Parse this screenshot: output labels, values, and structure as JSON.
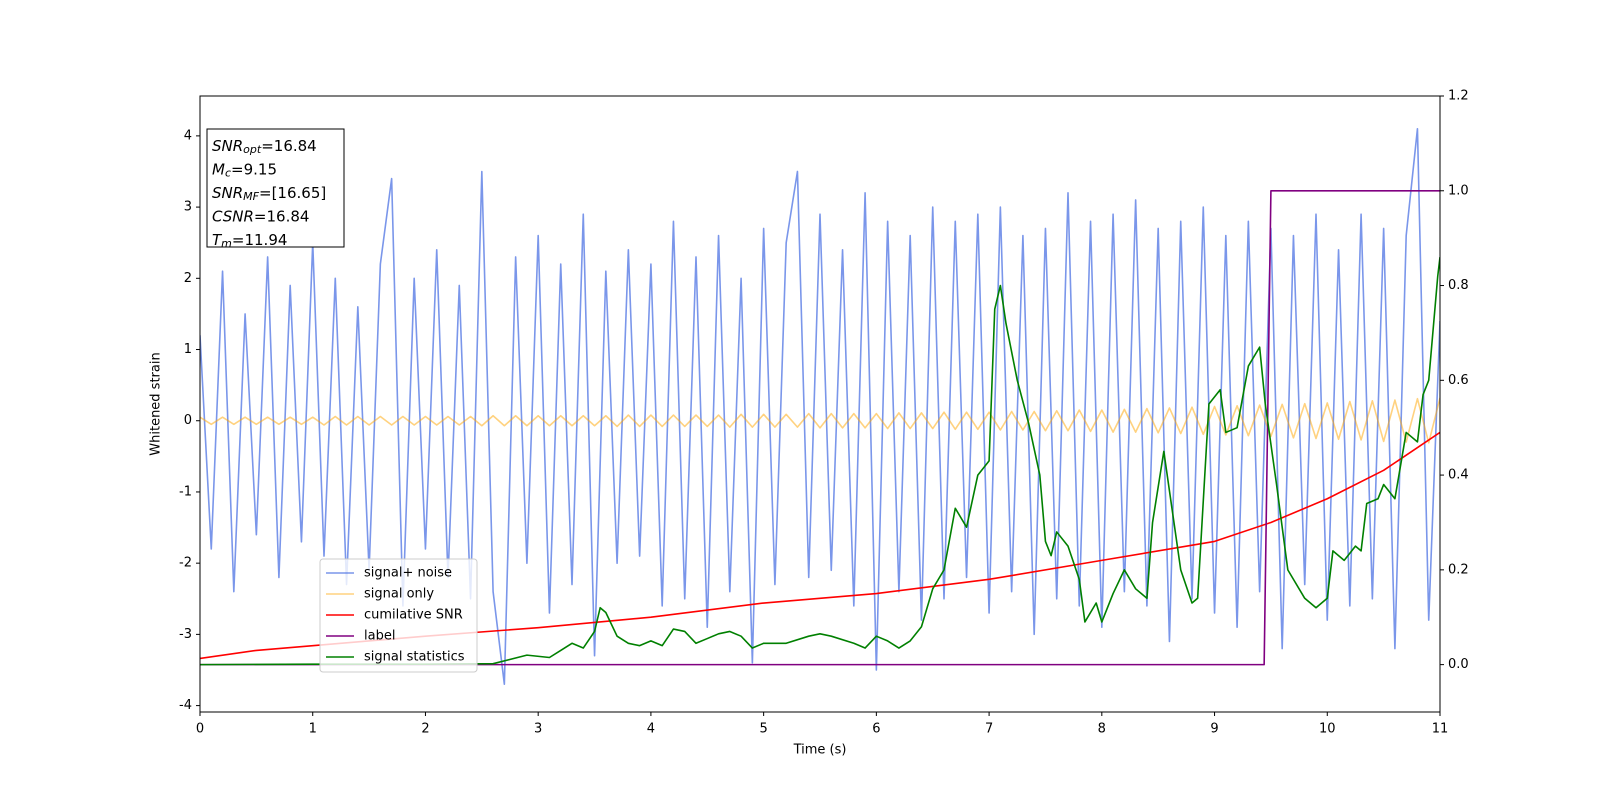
{
  "chart_data": {
    "type": "line",
    "xlabel": "Time (s)",
    "ylabel": "Whitened strain",
    "xlim": [
      0,
      11
    ],
    "xticks": [
      0,
      1,
      2,
      3,
      4,
      5,
      6,
      7,
      8,
      9,
      10,
      11
    ],
    "ylim": [
      -4.09,
      4.56
    ],
    "yticks": [
      -4,
      -3,
      -2,
      -1,
      0,
      1,
      2,
      3,
      4
    ],
    "y2lim": [
      -0.1,
      1.2
    ],
    "y2ticks": [
      {
        "value": 0,
        "label": "0.0"
      },
      0.2,
      0.4,
      0.6,
      0.8,
      {
        "value": 1,
        "label": "1.0"
      },
      1.2
    ],
    "legend": "lower left",
    "annotations": [
      {
        "main": "SNR",
        "sub": "opt",
        "rest": "=16.84"
      },
      {
        "main": "M",
        "sub": "c",
        "rest": "=9.15"
      },
      {
        "main": "SNR",
        "sub": "MF",
        "rest": "=[16.65]"
      },
      {
        "main": "CSNR",
        "rest": "=16.84"
      },
      {
        "main": "T",
        "sub": "m",
        "rest": "=11.94"
      }
    ],
    "x": [
      0,
      0.1,
      0.2,
      0.3,
      0.4,
      0.5,
      0.6,
      0.7,
      0.8,
      0.9,
      1,
      1.1,
      1.2,
      1.3,
      1.4,
      1.5,
      1.6,
      1.7,
      1.8,
      1.9,
      2,
      2.1,
      2.2,
      2.3,
      2.4,
      2.5,
      2.6,
      2.7,
      2.8,
      2.9,
      3,
      3.1,
      3.2,
      3.3,
      3.4,
      3.5,
      3.6,
      3.7,
      3.8,
      3.9,
      4,
      4.1,
      4.2,
      4.3,
      4.4,
      4.5,
      4.6,
      4.7,
      4.8,
      4.9,
      5,
      5.1,
      5.2,
      5.3,
      5.4,
      5.5,
      5.6,
      5.7,
      5.8,
      5.9,
      6,
      6.1,
      6.2,
      6.3,
      6.4,
      6.5,
      6.6,
      6.7,
      6.8,
      6.9,
      7,
      7.1,
      7.2,
      7.3,
      7.4,
      7.5,
      7.6,
      7.7,
      7.8,
      7.9,
      8,
      8.1,
      8.2,
      8.3,
      8.4,
      8.5,
      8.6,
      8.7,
      8.8,
      8.9,
      9,
      9.1,
      9.2,
      9.3,
      9.4,
      9.5,
      9.6,
      9.7,
      9.8,
      9.9,
      10,
      10.1,
      10.2,
      10.3,
      10.4,
      10.5,
      10.6,
      10.7,
      10.8,
      10.9,
      11
    ],
    "series": [
      {
        "name": "signal+ noise",
        "color": "#4169e1",
        "opacity": 0.7,
        "values": [
          1.2,
          -1.8,
          2.1,
          -2.4,
          1.5,
          -1.6,
          2.3,
          -2.2,
          1.9,
          -1.7,
          2.5,
          -1.9,
          2.0,
          -2.3,
          1.6,
          -2.1,
          2.2,
          3.4,
          -2.6,
          2.0,
          -1.8,
          2.4,
          -2.2,
          1.9,
          -2.5,
          3.5,
          -2.4,
          -3.7,
          2.3,
          -2.0,
          2.6,
          -2.7,
          2.2,
          -2.3,
          2.9,
          -3.3,
          2.1,
          -2.0,
          2.4,
          -1.9,
          2.2,
          -2.6,
          2.8,
          -2.5,
          2.3,
          -2.9,
          2.6,
          -2.4,
          2.0,
          -3.4,
          2.7,
          -2.3,
          2.5,
          3.5,
          -2.2,
          2.9,
          -2.1,
          2.4,
          -2.6,
          3.2,
          -3.5,
          2.8,
          -2.4,
          2.6,
          -2.8,
          3.0,
          -2.5,
          2.8,
          -2.2,
          2.9,
          -2.7,
          3.0,
          -2.4,
          2.6,
          -3.0,
          2.7,
          -2.5,
          3.2,
          -2.6,
          2.8,
          -2.9,
          2.9,
          -2.4,
          3.1,
          -2.6,
          2.7,
          -3.1,
          2.8,
          -2.5,
          3.0,
          -2.7,
          2.6,
          -2.9,
          2.8,
          -2.4,
          2.7,
          -3.2,
          2.6,
          -2.3,
          2.9,
          -2.8,
          2.4,
          -2.6,
          2.9,
          -2.5,
          2.7,
          -3.2,
          2.6,
          4.1,
          -2.8,
          1.4
        ]
      },
      {
        "name": "signal only",
        "color": "orange",
        "opacity": 0.5,
        "values": [
          0.05,
          -0.05,
          0.05,
          -0.05,
          0.05,
          -0.05,
          0.05,
          -0.05,
          0.05,
          -0.05,
          0.05,
          -0.06,
          0.06,
          -0.06,
          0.06,
          -0.06,
          0.06,
          -0.06,
          0.06,
          -0.06,
          0.06,
          -0.06,
          0.06,
          -0.06,
          0.06,
          -0.07,
          0.07,
          -0.07,
          0.07,
          -0.07,
          0.07,
          -0.07,
          0.07,
          -0.07,
          0.07,
          -0.07,
          0.07,
          -0.08,
          0.08,
          -0.08,
          0.08,
          -0.08,
          0.08,
          -0.08,
          0.08,
          -0.08,
          0.08,
          -0.09,
          0.09,
          -0.09,
          0.09,
          -0.09,
          0.09,
          -0.09,
          0.1,
          -0.1,
          0.1,
          -0.1,
          0.1,
          -0.1,
          0.1,
          -0.11,
          0.11,
          -0.11,
          0.11,
          -0.11,
          0.12,
          -0.12,
          0.12,
          -0.12,
          0.12,
          -0.13,
          0.13,
          -0.13,
          0.13,
          -0.14,
          0.14,
          -0.14,
          0.15,
          -0.15,
          0.15,
          -0.16,
          0.16,
          -0.16,
          0.17,
          -0.17,
          0.18,
          -0.18,
          0.19,
          -0.19,
          0.2,
          -0.2,
          0.21,
          -0.21,
          0.22,
          -0.22,
          0.23,
          -0.24,
          0.24,
          -0.25,
          0.25,
          -0.26,
          0.27,
          -0.27,
          0.28,
          -0.29,
          0.29,
          -0.3,
          0.31,
          -0.31,
          0.32
        ]
      },
      {
        "name": "cumilative SNR",
        "color": "red",
        "axis": "y2",
        "x": [
          0,
          0.5,
          1,
          2,
          3,
          4,
          5,
          6,
          7,
          8,
          9,
          9.5,
          10,
          10.5,
          11
        ],
        "values": [
          0.013,
          0.03,
          0.04,
          0.06,
          0.078,
          0.1,
          0.13,
          0.15,
          0.18,
          0.22,
          0.26,
          0.3,
          0.35,
          0.41,
          0.49
        ]
      },
      {
        "name": "label",
        "color": "purple",
        "axis": "y2",
        "x": [
          0,
          9.44,
          9.5,
          11
        ],
        "values": [
          0,
          0,
          1,
          1
        ]
      },
      {
        "name": "signal statistics",
        "color": "green",
        "axis": "y2",
        "x": [
          0,
          1,
          2,
          2.6,
          2.9,
          3.1,
          3.2,
          3.3,
          3.4,
          3.5,
          3.55,
          3.6,
          3.7,
          3.8,
          3.9,
          4.0,
          4.1,
          4.2,
          4.3,
          4.4,
          4.5,
          4.6,
          4.7,
          4.8,
          4.9,
          5.0,
          5.2,
          5.4,
          5.5,
          5.6,
          5.8,
          5.9,
          6.0,
          6.1,
          6.2,
          6.3,
          6.4,
          6.5,
          6.6,
          6.7,
          6.8,
          6.9,
          7.0,
          7.05,
          7.1,
          7.15,
          7.25,
          7.35,
          7.45,
          7.5,
          7.55,
          7.6,
          7.7,
          7.8,
          7.85,
          7.95,
          8.0,
          8.1,
          8.2,
          8.3,
          8.4,
          8.45,
          8.55,
          8.7,
          8.8,
          8.85,
          8.95,
          9.05,
          9.1,
          9.2,
          9.3,
          9.4,
          9.45,
          9.55,
          9.65,
          9.8,
          9.9,
          10.0,
          10.05,
          10.15,
          10.25,
          10.3,
          10.35,
          10.45,
          10.5,
          10.6,
          10.7,
          10.8,
          10.85,
          10.9,
          10.98,
          11
        ],
        "values": [
          0,
          0.001,
          0.001,
          0.002,
          0.02,
          0.015,
          0.03,
          0.045,
          0.035,
          0.07,
          0.12,
          0.11,
          0.06,
          0.045,
          0.04,
          0.05,
          0.04,
          0.075,
          0.07,
          0.045,
          0.055,
          0.065,
          0.07,
          0.06,
          0.035,
          0.045,
          0.045,
          0.06,
          0.065,
          0.06,
          0.045,
          0.035,
          0.06,
          0.05,
          0.035,
          0.05,
          0.08,
          0.16,
          0.2,
          0.33,
          0.29,
          0.4,
          0.43,
          0.75,
          0.8,
          0.72,
          0.6,
          0.51,
          0.4,
          0.26,
          0.23,
          0.28,
          0.25,
          0.18,
          0.09,
          0.13,
          0.09,
          0.15,
          0.2,
          0.16,
          0.14,
          0.3,
          0.45,
          0.2,
          0.13,
          0.14,
          0.55,
          0.58,
          0.49,
          0.5,
          0.63,
          0.67,
          0.55,
          0.38,
          0.2,
          0.14,
          0.12,
          0.14,
          0.24,
          0.22,
          0.25,
          0.24,
          0.34,
          0.35,
          0.38,
          0.35,
          0.49,
          0.47,
          0.57,
          0.6,
          0.82,
          0.86
        ]
      }
    ]
  }
}
